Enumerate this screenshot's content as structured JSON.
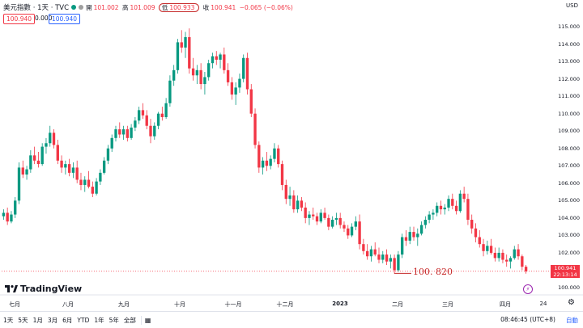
{
  "header": {
    "title": "美元指數 · 1天 · TVC",
    "open_label": "開",
    "open": "101.002",
    "high_label": "高",
    "high": "101.009",
    "low_label": "低",
    "low": "100.933",
    "close_label": "收",
    "close": "100.941",
    "change": "−0.065 (−0.06%)",
    "price_red": "100.940",
    "price_zero": "0.000",
    "price_blue": "100.940",
    "currency": "USD"
  },
  "y_axis": [
    "115.000",
    "114.000",
    "113.000",
    "112.000",
    "111.000",
    "110.000",
    "109.000",
    "108.000",
    "107.000",
    "106.000",
    "105.000",
    "104.000",
    "103.000",
    "102.000",
    "101.000",
    "100.000"
  ],
  "y_values": [
    115,
    114,
    113,
    112,
    111,
    110,
    109,
    108,
    107,
    106,
    105,
    104,
    103,
    102,
    101,
    100
  ],
  "price_tag": {
    "price": "100.941",
    "countdown": "22:13:14",
    "value": 100.941
  },
  "x_axis": [
    {
      "label": "七月",
      "bold": false
    },
    {
      "label": "八月",
      "bold": false
    },
    {
      "label": "九月",
      "bold": false
    },
    {
      "label": "十月",
      "bold": false
    },
    {
      "label": "十一月",
      "bold": false
    },
    {
      "label": "十二月",
      "bold": false
    },
    {
      "label": "2023",
      "bold": true
    },
    {
      "label": "二月",
      "bold": false
    },
    {
      "label": "三月",
      "bold": false
    },
    {
      "label": "四月",
      "bold": false
    },
    {
      "label": "24",
      "bold": false
    }
  ],
  "annotation": {
    "label": "100. 820",
    "value": 100.82
  },
  "logo": "TradingView",
  "bottom": {
    "ranges": [
      "1天",
      "5天",
      "1月",
      "3月",
      "6月",
      "YTD",
      "1年",
      "5年",
      "全部"
    ],
    "clock": "08:46:45 (UTC+8)",
    "auto": "自動"
  },
  "colors": {
    "up": "#089981",
    "down": "#f23645",
    "annotation": "#c62828"
  },
  "chart_data": {
    "type": "candlestick",
    "ylim": [
      100,
      115
    ],
    "candles": [
      [
        104.1,
        104.5,
        103.9,
        104.3
      ],
      [
        104.3,
        104.6,
        103.6,
        103.8
      ],
      [
        103.8,
        104.4,
        103.7,
        104.2
      ],
      [
        104.2,
        105.2,
        104.0,
        105.0
      ],
      [
        105.0,
        107.2,
        104.8,
        106.9
      ],
      [
        106.9,
        107.3,
        106.3,
        106.5
      ],
      [
        106.5,
        107.0,
        106.2,
        106.8
      ],
      [
        106.8,
        107.9,
        106.6,
        107.6
      ],
      [
        107.6,
        108.1,
        107.1,
        107.3
      ],
      [
        107.3,
        107.8,
        106.9,
        107.1
      ],
      [
        107.1,
        108.3,
        107.0,
        108.1
      ],
      [
        108.1,
        108.6,
        107.7,
        108.3
      ],
      [
        108.3,
        109.3,
        108.1,
        108.9
      ],
      [
        108.9,
        109.1,
        108.0,
        108.2
      ],
      [
        108.2,
        108.5,
        107.1,
        107.3
      ],
      [
        107.3,
        107.6,
        106.6,
        106.9
      ],
      [
        106.9,
        107.3,
        106.5,
        107.1
      ],
      [
        107.1,
        107.4,
        106.4,
        106.6
      ],
      [
        106.6,
        107.2,
        106.3,
        106.9
      ],
      [
        106.9,
        107.3,
        106.0,
        106.2
      ],
      [
        106.2,
        106.6,
        105.6,
        105.9
      ],
      [
        105.9,
        106.4,
        105.5,
        106.2
      ],
      [
        106.2,
        106.7,
        105.7,
        105.8
      ],
      [
        105.8,
        106.1,
        105.2,
        105.4
      ],
      [
        105.4,
        106.3,
        105.3,
        106.1
      ],
      [
        106.1,
        106.8,
        105.9,
        106.6
      ],
      [
        106.6,
        107.5,
        106.5,
        107.3
      ],
      [
        107.3,
        108.2,
        107.1,
        108.0
      ],
      [
        108.0,
        108.8,
        107.8,
        108.6
      ],
      [
        108.6,
        109.3,
        108.4,
        109.1
      ],
      [
        109.1,
        109.5,
        108.6,
        108.8
      ],
      [
        108.8,
        109.3,
        108.5,
        109.1
      ],
      [
        109.1,
        109.3,
        108.4,
        108.6
      ],
      [
        108.6,
        109.4,
        108.5,
        109.2
      ],
      [
        109.2,
        109.8,
        109.0,
        109.6
      ],
      [
        109.6,
        110.4,
        109.4,
        110.2
      ],
      [
        110.2,
        110.6,
        109.7,
        109.9
      ],
      [
        109.9,
        110.2,
        109.1,
        109.3
      ],
      [
        109.3,
        109.7,
        108.3,
        108.7
      ],
      [
        108.7,
        109.5,
        108.5,
        109.3
      ],
      [
        109.3,
        110.1,
        109.1,
        110.0
      ],
      [
        110.0,
        110.4,
        109.6,
        109.8
      ],
      [
        109.8,
        110.9,
        109.7,
        110.6
      ],
      [
        110.6,
        112.2,
        110.4,
        111.9
      ],
      [
        111.9,
        112.8,
        111.6,
        112.5
      ],
      [
        112.5,
        114.3,
        112.3,
        114.1
      ],
      [
        114.1,
        114.8,
        113.5,
        113.8
      ],
      [
        113.8,
        114.7,
        113.2,
        114.4
      ],
      [
        114.4,
        114.9,
        112.3,
        112.6
      ],
      [
        112.6,
        113.2,
        111.9,
        112.2
      ],
      [
        112.2,
        112.8,
        111.7,
        112.5
      ],
      [
        112.5,
        112.9,
        111.4,
        111.7
      ],
      [
        111.7,
        112.4,
        111.1,
        112.1
      ],
      [
        112.1,
        113.1,
        111.9,
        112.9
      ],
      [
        112.9,
        113.5,
        112.6,
        113.3
      ],
      [
        113.3,
        113.6,
        112.8,
        113.1
      ],
      [
        113.1,
        113.5,
        112.6,
        113.4
      ],
      [
        113.4,
        113.8,
        112.3,
        112.5
      ],
      [
        112.5,
        112.9,
        111.6,
        111.8
      ],
      [
        111.8,
        112.1,
        110.8,
        111.1
      ],
      [
        111.1,
        111.8,
        110.5,
        111.5
      ],
      [
        111.5,
        112.3,
        111.2,
        112.0
      ],
      [
        112.0,
        113.4,
        111.8,
        113.2
      ],
      [
        113.2,
        113.5,
        111.1,
        111.4
      ],
      [
        111.4,
        111.7,
        109.8,
        110.0
      ],
      [
        110.0,
        110.3,
        108.0,
        108.2
      ],
      [
        108.2,
        108.4,
        106.6,
        106.9
      ],
      [
        106.9,
        107.5,
        106.5,
        107.3
      ],
      [
        107.3,
        107.8,
        106.7,
        107.0
      ],
      [
        107.0,
        107.6,
        106.8,
        107.4
      ],
      [
        107.4,
        108.3,
        107.2,
        108.0
      ],
      [
        108.0,
        108.2,
        106.9,
        107.1
      ],
      [
        107.1,
        107.3,
        105.6,
        105.9
      ],
      [
        105.9,
        106.2,
        104.8,
        105.1
      ],
      [
        105.1,
        105.8,
        104.7,
        105.3
      ],
      [
        105.3,
        105.6,
        104.3,
        104.5
      ],
      [
        104.5,
        105.3,
        104.3,
        105.0
      ],
      [
        105.0,
        105.2,
        104.4,
        104.6
      ],
      [
        104.6,
        104.9,
        103.7,
        104.0
      ],
      [
        104.0,
        104.4,
        103.6,
        104.2
      ],
      [
        104.2,
        104.6,
        103.9,
        104.1
      ],
      [
        104.1,
        104.3,
        103.6,
        103.8
      ],
      [
        103.8,
        104.5,
        103.7,
        104.3
      ],
      [
        104.3,
        104.6,
        103.9,
        104.0
      ],
      [
        104.0,
        104.2,
        103.3,
        103.5
      ],
      [
        103.5,
        104.1,
        103.4,
        103.9
      ],
      [
        103.9,
        104.3,
        103.6,
        104.0
      ],
      [
        104.0,
        104.3,
        103.4,
        103.6
      ],
      [
        103.6,
        103.8,
        103.2,
        103.4
      ],
      [
        103.4,
        103.6,
        102.8,
        103.0
      ],
      [
        103.0,
        103.7,
        102.9,
        103.5
      ],
      [
        103.5,
        104.1,
        103.3,
        103.8
      ],
      [
        103.8,
        104.2,
        102.2,
        102.5
      ],
      [
        102.5,
        102.8,
        101.9,
        102.1
      ],
      [
        102.1,
        102.5,
        101.6,
        101.8
      ],
      [
        101.8,
        102.4,
        101.5,
        102.2
      ],
      [
        102.2,
        102.6,
        101.8,
        101.9
      ],
      [
        101.9,
        102.3,
        101.4,
        101.6
      ],
      [
        101.6,
        102.1,
        101.4,
        101.9
      ],
      [
        101.9,
        102.2,
        101.3,
        101.5
      ],
      [
        101.5,
        101.9,
        101.1,
        101.7
      ],
      [
        101.7,
        101.9,
        100.8,
        101.0
      ],
      [
        101.0,
        102.1,
        100.9,
        101.9
      ],
      [
        101.9,
        103.1,
        101.7,
        102.9
      ],
      [
        102.9,
        103.3,
        102.4,
        102.7
      ],
      [
        102.7,
        103.5,
        102.5,
        103.2
      ],
      [
        103.2,
        103.5,
        102.7,
        102.9
      ],
      [
        102.9,
        103.4,
        102.4,
        103.1
      ],
      [
        103.1,
        103.8,
        103.0,
        103.6
      ],
      [
        103.6,
        104.1,
        103.4,
        103.9
      ],
      [
        103.9,
        104.4,
        103.7,
        104.2
      ],
      [
        104.2,
        104.5,
        103.9,
        104.3
      ],
      [
        104.3,
        104.9,
        104.1,
        104.7
      ],
      [
        104.7,
        105.0,
        104.2,
        104.5
      ],
      [
        104.5,
        104.8,
        104.2,
        104.6
      ],
      [
        104.6,
        105.3,
        104.4,
        105.1
      ],
      [
        105.1,
        105.4,
        104.5,
        104.7
      ],
      [
        104.7,
        105.0,
        104.2,
        104.4
      ],
      [
        104.4,
        105.6,
        104.3,
        105.4
      ],
      [
        105.4,
        105.8,
        104.9,
        105.1
      ],
      [
        105.1,
        105.4,
        103.6,
        103.9
      ],
      [
        103.9,
        104.2,
        103.1,
        103.4
      ],
      [
        103.4,
        103.7,
        102.6,
        102.9
      ],
      [
        102.9,
        103.3,
        102.3,
        102.5
      ],
      [
        102.5,
        102.8,
        101.8,
        102.1
      ],
      [
        102.1,
        102.7,
        101.9,
        102.4
      ],
      [
        102.4,
        102.8,
        101.9,
        102.0
      ],
      [
        102.0,
        102.3,
        101.5,
        101.7
      ],
      [
        101.7,
        102.3,
        101.5,
        102.0
      ],
      [
        102.0,
        102.2,
        101.4,
        101.6
      ],
      [
        101.6,
        101.9,
        101.2,
        101.5
      ],
      [
        101.5,
        101.8,
        101.1,
        101.7
      ],
      [
        101.7,
        102.4,
        101.6,
        102.2
      ],
      [
        102.2,
        102.5,
        101.6,
        101.8
      ],
      [
        101.8,
        101.9,
        101.0,
        101.2
      ],
      [
        101.2,
        101.3,
        100.8,
        100.94
      ]
    ]
  }
}
